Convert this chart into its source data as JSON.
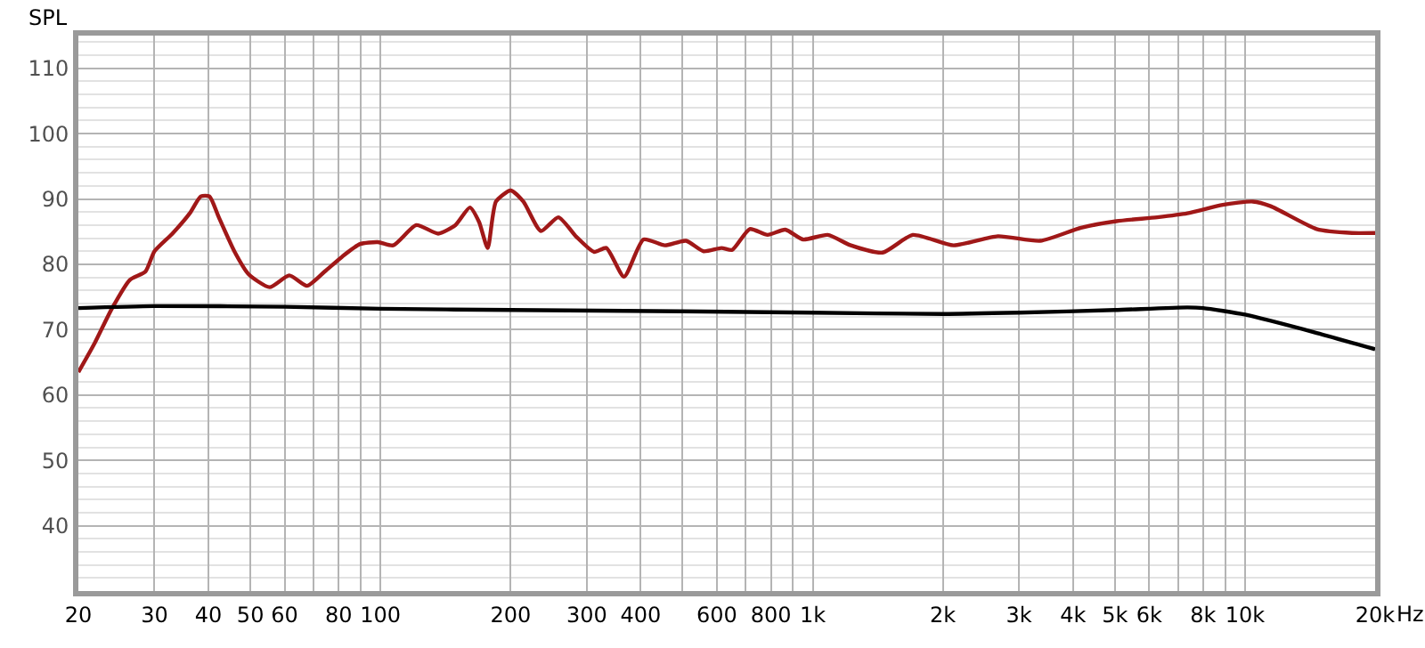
{
  "chart_data": {
    "type": "line",
    "ylabel": "SPL",
    "log": "x",
    "grid": true,
    "marker": "none",
    "line_style": "solid",
    "xlim": [
      20,
      20000
    ],
    "ylim": [
      30,
      115
    ],
    "xticks": [
      20,
      30,
      40,
      50,
      60,
      {
        "value": 70,
        "label": null
      },
      80,
      {
        "value": 90,
        "label": null
      },
      100,
      200,
      300,
      400,
      {
        "value": 500,
        "label": null
      },
      600,
      {
        "value": 700,
        "label": null
      },
      800,
      {
        "value": 900,
        "label": null
      },
      {
        "value": 1000,
        "label": "1k"
      },
      {
        "value": 2000,
        "label": "2k"
      },
      {
        "value": 3000,
        "label": "3k"
      },
      {
        "value": 4000,
        "label": "4k"
      },
      {
        "value": 5000,
        "label": "5k"
      },
      {
        "value": 6000,
        "label": "6k"
      },
      {
        "value": 7000,
        "label": null
      },
      {
        "value": 8000,
        "label": "8k"
      },
      {
        "value": 9000,
        "label": null
      },
      {
        "value": 10000,
        "label": "10k"
      },
      {
        "value": 20000,
        "label": "20k"
      }
    ],
    "xlabel": "Hz",
    "yticks": [
      40,
      50,
      60,
      70,
      80,
      90,
      100,
      110
    ],
    "series": [
      {
        "color": "#a01818",
        "x": [
          20,
          21.8,
          23.9,
          26.3,
          28.6,
          30,
          33,
          36.2,
          38.4,
          40.2,
          42.2,
          45.9,
          49.5,
          55.4,
          61.5,
          67.6,
          74.3,
          81.6,
          89.7,
          98.6,
          107,
          121,
          136,
          149,
          161,
          169,
          177,
          185,
          200,
          214,
          235,
          258,
          284,
          312,
          333,
          366,
          406,
          455,
          509,
          559,
          615,
          651,
          715,
          786,
          864,
          949,
          1083,
          1225,
          1451,
          1704,
          2117,
          2680,
          3361,
          4175,
          5041,
          6263,
          7357,
          8883,
          10428,
          11463,
          14649,
          17690,
          20000
        ],
        "values": [
          63.5,
          67.9,
          73.2,
          77.6,
          78.9,
          82.0,
          84.7,
          87.8,
          90.4,
          90.4,
          87.3,
          82.0,
          78.5,
          76.5,
          78.3,
          76.7,
          78.9,
          81.2,
          83.1,
          83.4,
          82.9,
          86.0,
          84.7,
          86.0,
          88.7,
          86.5,
          82.5,
          89.6,
          91.3,
          89.6,
          85.1,
          87.2,
          84.2,
          81.9,
          82.5,
          78.1,
          83.8,
          82.9,
          83.6,
          82.0,
          82.5,
          82.2,
          85.4,
          84.5,
          85.3,
          83.8,
          84.5,
          82.9,
          81.8,
          84.5,
          82.9,
          84.3,
          83.6,
          85.6,
          86.6,
          87.2,
          87.8,
          89.1,
          89.6,
          88.9,
          85.4,
          84.8,
          84.8
        ]
      },
      {
        "color": "#000000",
        "x": [
          20,
          30,
          60,
          100,
          200,
          500,
          1000,
          2000,
          3000,
          5000,
          7357,
          8000,
          10000,
          14649,
          20000
        ],
        "values": [
          73.3,
          73.6,
          73.5,
          73.2,
          73.0,
          72.8,
          72.6,
          72.4,
          72.6,
          73.0,
          73.4,
          73.3,
          72.3,
          69.5,
          67.0
        ]
      }
    ]
  }
}
